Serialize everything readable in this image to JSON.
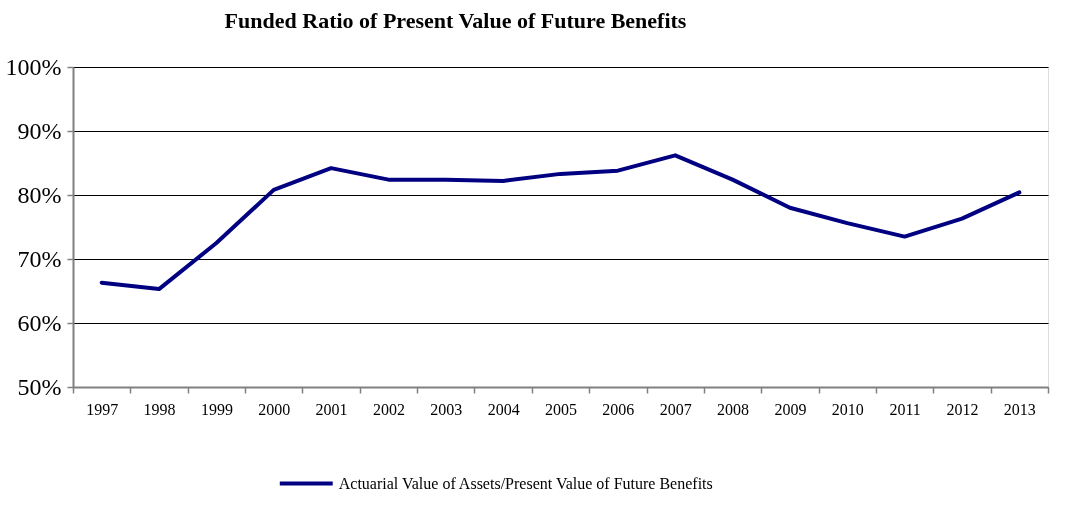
{
  "chart_data": {
    "type": "line",
    "title": "Funded Ratio of Present Value of Future Benefits",
    "categories": [
      "1997",
      "1998",
      "1999",
      "2000",
      "2001",
      "2002",
      "2003",
      "2004",
      "2005",
      "2006",
      "2007",
      "2008",
      "2009",
      "2010",
      "2011",
      "2012",
      "2013"
    ],
    "series": [
      {
        "name": "Actuarial Value of Assets/Present Value of Future Benefits",
        "color": "#000080",
        "values": [
          66.3,
          65.3,
          72.5,
          80.8,
          84.2,
          82.4,
          82.4,
          82.2,
          83.3,
          83.8,
          86.2,
          82.4,
          78.0,
          75.6,
          73.5,
          76.3,
          80.4
        ]
      }
    ],
    "ylim": [
      50,
      100
    ],
    "yticks": [
      {
        "value": 50,
        "label": "50%"
      },
      {
        "value": 60,
        "label": "60%"
      },
      {
        "value": 70,
        "label": "70%"
      },
      {
        "value": 80,
        "label": "80%"
      },
      {
        "value": 90,
        "label": "90%"
      },
      {
        "value": 100,
        "label": "100%"
      }
    ],
    "grid": "y",
    "legend": "bottom",
    "marker": "none",
    "line_style": "solid"
  }
}
